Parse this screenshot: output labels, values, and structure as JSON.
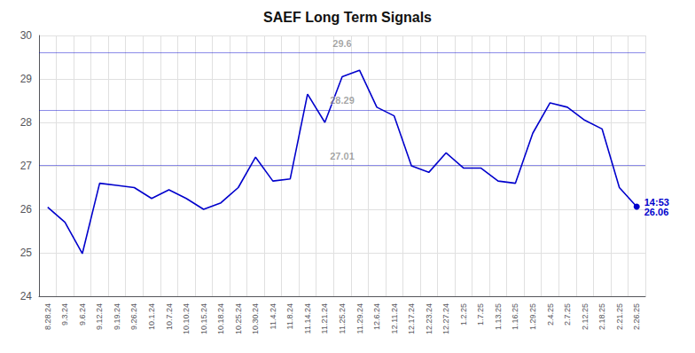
{
  "chart_data": {
    "type": "line",
    "title": "SAEF Long Term Signals",
    "categories": [
      "8.28.24",
      "9.3.24",
      "9.6.24",
      "9.12.24",
      "9.19.24",
      "9.26.24",
      "10.1.24",
      "10.7.24",
      "10.10.24",
      "10.15.24",
      "10.18.24",
      "10.25.24",
      "10.30.24",
      "11.4.24",
      "11.8.24",
      "11.14.24",
      "11.21.24",
      "11.25.24",
      "11.29.24",
      "12.6.24",
      "12.11.24",
      "12.17.24",
      "12.23.24",
      "12.27.24",
      "1.2.25",
      "1.7.25",
      "1.13.25",
      "1.16.25",
      "1.29.25",
      "2.4.25",
      "2.7.25",
      "2.12.25",
      "2.18.25",
      "2.21.25",
      "2.26.25"
    ],
    "values": [
      26.05,
      25.7,
      24.98,
      26.6,
      26.55,
      26.5,
      26.25,
      26.45,
      26.25,
      26.0,
      26.15,
      26.5,
      27.2,
      26.65,
      26.7,
      28.65,
      28.0,
      29.05,
      29.2,
      28.35,
      28.15,
      27.0,
      26.85,
      27.3,
      26.95,
      26.95,
      26.65,
      26.6,
      27.75,
      28.45,
      28.35,
      28.05,
      27.85,
      26.5,
      26.06
    ],
    "color": "#0000cc",
    "hlines": [
      29.6,
      28.29,
      27.01
    ],
    "last_label": [
      "14:53",
      "26.06"
    ],
    "ylim": [
      24,
      30
    ],
    "yticks": [
      24,
      25,
      26,
      27,
      28,
      29,
      30
    ],
    "grid": true
  }
}
